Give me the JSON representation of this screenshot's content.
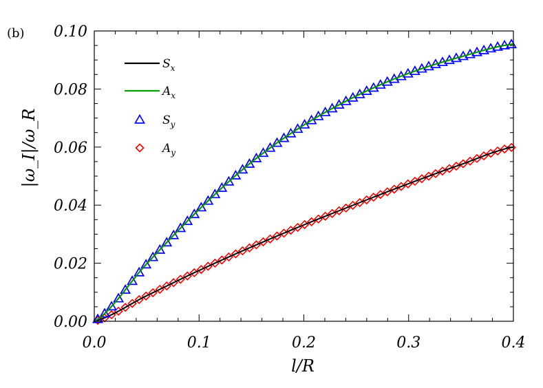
{
  "panel_label": "(b)",
  "chart_data": {
    "type": "line",
    "xlabel": "l/R",
    "ylabel": "|ω_I|/ω_R",
    "xlim": [
      0.0,
      0.4
    ],
    "ylim": [
      0.0,
      0.1
    ],
    "xticks": [
      "0.0",
      "0.1",
      "0.2",
      "0.3",
      "0.4"
    ],
    "yticks": [
      "0.00",
      "0.02",
      "0.04",
      "0.06",
      "0.08",
      "0.10"
    ],
    "grid": false,
    "legend_position": "top-left",
    "series": [
      {
        "name": "S_x",
        "style": "line",
        "color": "#000000",
        "x": [
          0.0,
          0.05,
          0.1,
          0.15,
          0.2,
          0.25,
          0.3,
          0.35,
          0.4
        ],
        "y": [
          0.0,
          0.0198,
          0.0385,
          0.0548,
          0.0676,
          0.0776,
          0.0854,
          0.0911,
          0.0955
        ]
      },
      {
        "name": "A_x",
        "style": "line",
        "color": "#00a000",
        "x": [
          0.0,
          0.05,
          0.1,
          0.15,
          0.2,
          0.25,
          0.3,
          0.35,
          0.4
        ],
        "y": [
          0.0,
          0.0198,
          0.0385,
          0.0548,
          0.0676,
          0.0776,
          0.0854,
          0.0911,
          0.0955
        ]
      },
      {
        "name": "S_y",
        "style": "triangle",
        "color": "#0000ff",
        "x": [
          0.0,
          0.05,
          0.1,
          0.15,
          0.2,
          0.25,
          0.3,
          0.35,
          0.4
        ],
        "y": [
          0.0,
          0.0198,
          0.0385,
          0.0548,
          0.0676,
          0.0776,
          0.0854,
          0.0911,
          0.0955
        ]
      },
      {
        "name": "A_y",
        "style": "diamond",
        "color": "#ff0000",
        "x": [
          0.0,
          0.05,
          0.1,
          0.15,
          0.2,
          0.25,
          0.3,
          0.35,
          0.4
        ],
        "y": [
          0.0,
          0.0088,
          0.0175,
          0.0256,
          0.0332,
          0.0404,
          0.0474,
          0.054,
          0.06
        ]
      }
    ],
    "extra_lines": [
      {
        "color": "#000000",
        "x": [
          0.0,
          0.05,
          0.1,
          0.15,
          0.2,
          0.25,
          0.3,
          0.35,
          0.4
        ],
        "y": [
          0.0,
          0.0088,
          0.0175,
          0.0256,
          0.0332,
          0.0404,
          0.0474,
          0.054,
          0.06
        ]
      }
    ]
  }
}
